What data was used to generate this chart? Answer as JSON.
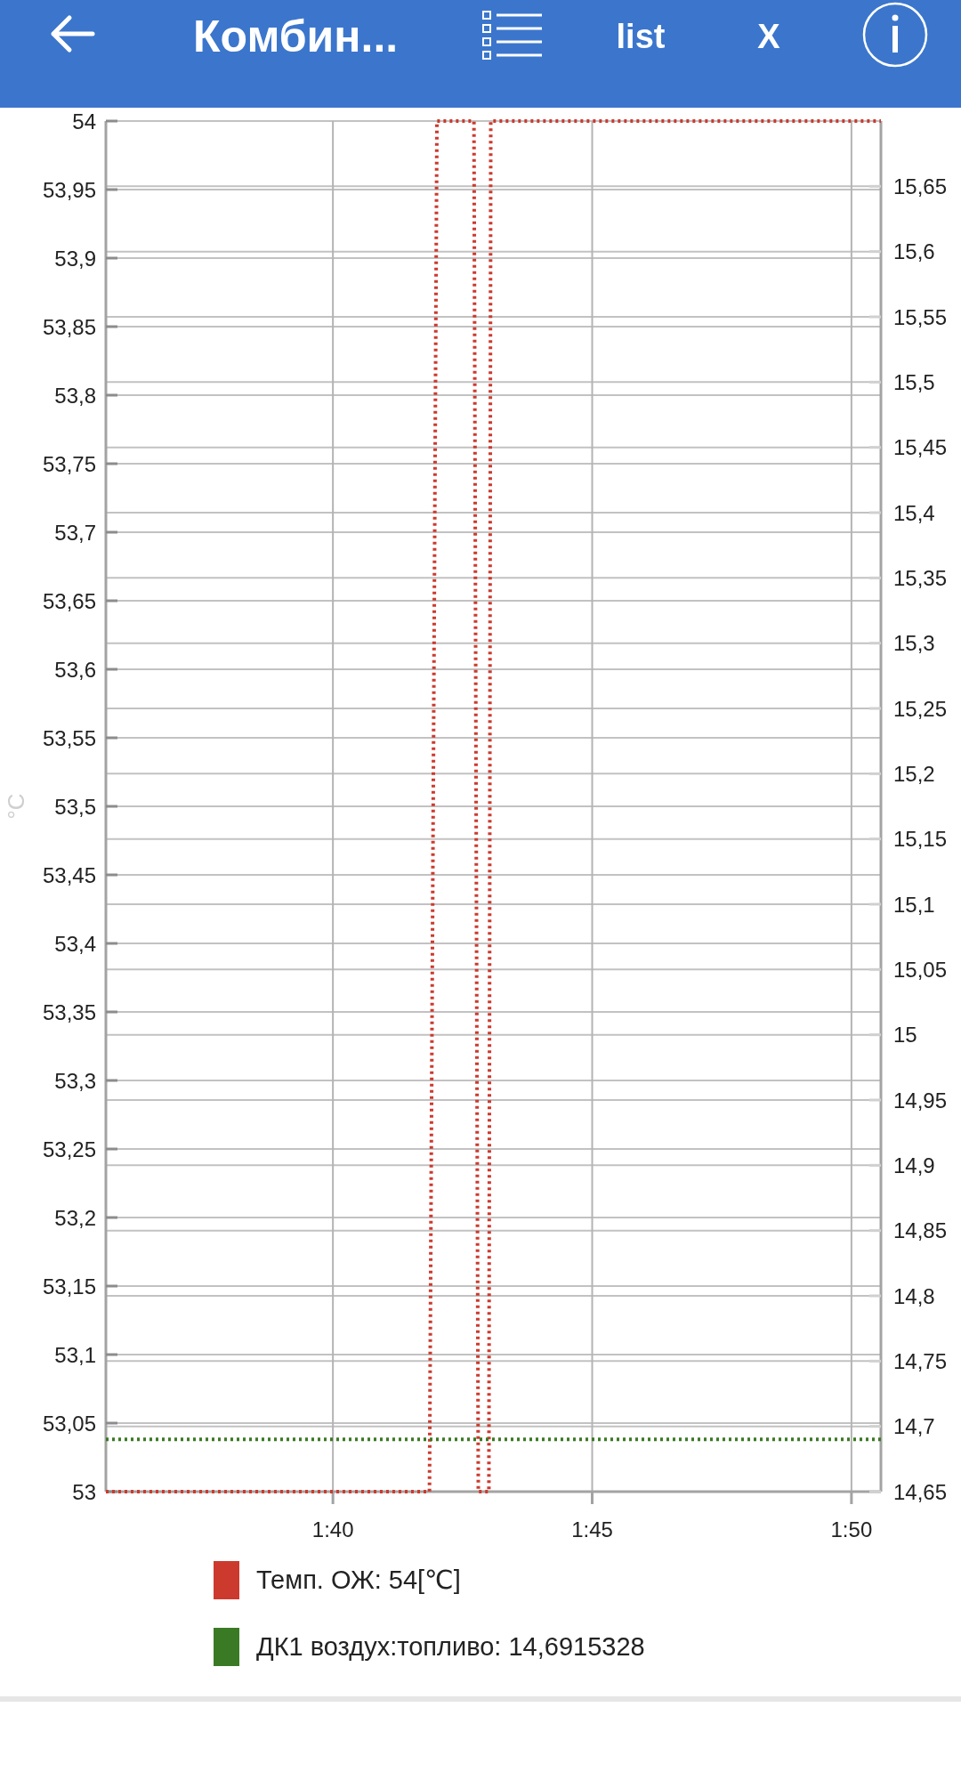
{
  "chart_data": {
    "type": "line",
    "title": "Комбин...",
    "ylabel": "°C",
    "xlim": [
      1.5937,
      1.8428
    ],
    "xticks": [
      {
        "value": 1.66667,
        "label": "1:40"
      },
      {
        "value": 1.75,
        "label": "1:45"
      },
      {
        "value": 1.83333,
        "label": "1:50"
      }
    ],
    "ylim": [
      53,
      54
    ],
    "yticks": [
      53,
      {
        "value": 53.05,
        "label": "53,05"
      },
      {
        "value": 53.1,
        "label": "53,1"
      },
      {
        "value": 53.15,
        "label": "53,15"
      },
      {
        "value": 53.2,
        "label": "53,2"
      },
      {
        "value": 53.25,
        "label": "53,25"
      },
      {
        "value": 53.3,
        "label": "53,3"
      },
      {
        "value": 53.35,
        "label": "53,35"
      },
      {
        "value": 53.4,
        "label": "53,4"
      },
      {
        "value": 53.45,
        "label": "53,45"
      },
      {
        "value": 53.5,
        "label": "53,5"
      },
      {
        "value": 53.55,
        "label": "53,55"
      },
      {
        "value": 53.6,
        "label": "53,6"
      },
      {
        "value": 53.65,
        "label": "53,65"
      },
      {
        "value": 53.7,
        "label": "53,7"
      },
      {
        "value": 53.75,
        "label": "53,75"
      },
      {
        "value": 53.8,
        "label": "53,8"
      },
      {
        "value": 53.85,
        "label": "53,85"
      },
      {
        "value": 53.9,
        "label": "53,9"
      },
      {
        "value": 53.95,
        "label": "53,95"
      },
      54
    ],
    "y2lim": [
      14.65,
      15.7
    ],
    "y2ticks": [
      {
        "value": 14.65,
        "label": "14,65"
      },
      {
        "value": 14.7,
        "label": "14,7"
      },
      {
        "value": 14.75,
        "label": "14,75"
      },
      {
        "value": 14.8,
        "label": "14,8"
      },
      {
        "value": 14.85,
        "label": "14,85"
      },
      {
        "value": 14.9,
        "label": "14,9"
      },
      {
        "value": 14.95,
        "label": "14,95"
      },
      15,
      {
        "value": 15.05,
        "label": "15,05"
      },
      {
        "value": 15.1,
        "label": "15,1"
      },
      {
        "value": 15.15,
        "label": "15,15"
      },
      {
        "value": 15.2,
        "label": "15,2"
      },
      {
        "value": 15.25,
        "label": "15,25"
      },
      {
        "value": 15.3,
        "label": "15,3"
      },
      {
        "value": 15.35,
        "label": "15,35"
      },
      {
        "value": 15.4,
        "label": "15,4"
      },
      {
        "value": 15.45,
        "label": "15,45"
      },
      {
        "value": 15.5,
        "label": "15,5"
      },
      {
        "value": 15.55,
        "label": "15,55"
      },
      {
        "value": 15.6,
        "label": "15,6"
      },
      {
        "value": 15.65,
        "label": "15,65"
      }
    ],
    "grid": true,
    "legend": "bottom",
    "line_style": "dotted",
    "series": [
      {
        "name": "Темп. ОЖ: 54[℃]",
        "color": "#cc3a2e",
        "x": [
          1.5937,
          1.6977,
          1.7001,
          1.712,
          1.7134,
          1.7168,
          1.7174,
          1.8428
        ],
        "values": [
          53,
          53,
          54,
          54,
          53,
          53,
          54,
          54
        ]
      },
      {
        "name": "ДК1 воздух:топливо: 14,6915328",
        "color": "#3b7a24",
        "axis": "y2",
        "x": [
          1.5937,
          1.8428
        ],
        "values": [
          14.69,
          14.69
        ]
      }
    ],
    "annotations": [
      "list",
      "X"
    ]
  }
}
